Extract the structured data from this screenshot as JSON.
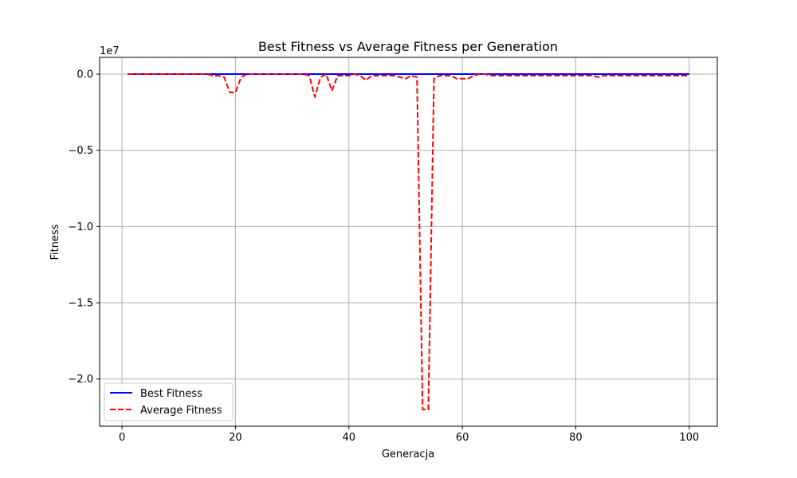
{
  "chart_data": {
    "type": "line",
    "title": "Best Fitness vs Average Fitness per Generation",
    "xlabel": "Generacja",
    "ylabel": "Fitness",
    "y_offset_text": "1e7",
    "xlim": [
      -3.95,
      104.95
    ],
    "ylim": [
      -2.31,
      0.11
    ],
    "grid": true,
    "legend_position": "lower-left",
    "x_ticks": [
      0,
      20,
      40,
      60,
      80,
      100
    ],
    "x_tick_labels": [
      "0",
      "20",
      "40",
      "60",
      "80",
      "100"
    ],
    "y_ticks": [
      0.0,
      -0.5,
      -1.0,
      -1.5,
      -2.0
    ],
    "y_tick_labels": [
      "0.0",
      "−0.5",
      "−1.0",
      "−1.5",
      "−2.0"
    ],
    "series": [
      {
        "name": "Best Fitness",
        "color": "#0000ff",
        "style": "solid",
        "x_start": 1,
        "values": [
          0,
          0,
          0,
          0,
          0,
          0,
          0,
          0,
          0,
          0,
          0,
          0,
          0,
          0,
          0,
          0,
          0,
          0,
          0,
          0,
          0,
          0,
          0,
          0,
          0,
          0,
          0,
          0,
          0,
          0,
          0,
          0,
          0,
          0,
          0,
          0,
          0,
          0,
          0,
          0,
          0,
          0,
          0,
          0,
          0,
          0,
          0,
          0,
          0,
          0,
          0,
          0,
          0,
          0,
          0,
          0,
          0,
          0,
          0,
          0,
          0,
          0,
          0,
          0,
          0,
          0,
          0,
          0,
          0,
          0,
          0,
          0,
          0,
          0,
          0,
          0,
          0,
          0,
          0,
          0,
          0,
          0,
          0,
          0,
          0,
          0,
          0,
          0,
          0,
          0,
          0,
          0,
          0,
          0,
          0,
          0,
          0,
          0,
          0,
          0
        ]
      },
      {
        "name": "Average Fitness",
        "color": "#ff0000",
        "style": "dashed",
        "x_start": 1,
        "values": [
          0,
          0,
          0,
          0,
          0,
          0,
          0,
          0,
          0,
          0,
          0,
          0,
          0,
          0,
          0,
          -0.01,
          -0.01,
          -0.02,
          -0.12,
          -0.12,
          -0.02,
          0,
          0,
          0,
          0,
          0,
          0,
          0,
          0,
          0,
          0,
          0,
          -0.01,
          -0.15,
          -0.02,
          0,
          -0.11,
          -0.01,
          -0.01,
          -0.01,
          0,
          -0.01,
          -0.04,
          -0.01,
          -0.01,
          -0.01,
          -0.01,
          -0.01,
          -0.02,
          -0.03,
          -0.01,
          -0.02,
          -2.2,
          -2.2,
          -0.03,
          -0.01,
          -0.01,
          -0.01,
          -0.03,
          -0.03,
          -0.03,
          -0.01,
          0,
          0,
          -0.01,
          -0.01,
          -0.01,
          -0.01,
          -0.01,
          -0.01,
          -0.01,
          -0.01,
          -0.01,
          -0.01,
          -0.01,
          -0.01,
          -0.01,
          -0.01,
          -0.01,
          -0.01,
          -0.01,
          -0.01,
          -0.01,
          -0.02,
          -0.01,
          -0.01,
          -0.01,
          -0.01,
          -0.01,
          -0.01,
          -0.01,
          -0.01,
          -0.01,
          -0.01,
          -0.01,
          -0.01,
          -0.01,
          -0.01,
          -0.01,
          -0.01
        ]
      }
    ]
  }
}
